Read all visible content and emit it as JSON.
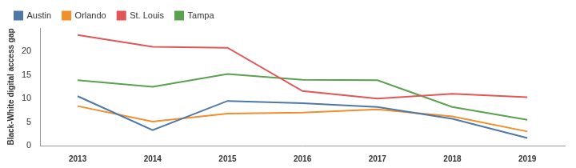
{
  "chart_data": {
    "type": "line",
    "categories": [
      "2013",
      "2014",
      "2015",
      "2016",
      "2017",
      "2018",
      "2019"
    ],
    "y_label": "Black-White digital access gap",
    "series": [
      {
        "name": "Austin",
        "color": "#4e79a7",
        "values": [
          10.5,
          3.3,
          9.5,
          9.0,
          8.2,
          5.7,
          1.6
        ]
      },
      {
        "name": "Orlando",
        "color": "#f28e2b",
        "values": [
          8.4,
          5.1,
          6.8,
          7.0,
          7.7,
          6.2,
          3.0
        ]
      },
      {
        "name": "St. Louis",
        "color": "#e15759",
        "values": [
          23.5,
          21.0,
          20.8,
          11.6,
          10.0,
          11.0,
          10.3
        ]
      },
      {
        "name": "Tampa",
        "color": "#59a14f",
        "values": [
          13.9,
          12.5,
          15.2,
          14.0,
          13.9,
          8.2,
          5.5
        ]
      }
    ],
    "ylim": [
      0,
      25
    ],
    "yticks": [
      0,
      5,
      10,
      15,
      20
    ],
    "grid": false,
    "legend": "top-left"
  }
}
